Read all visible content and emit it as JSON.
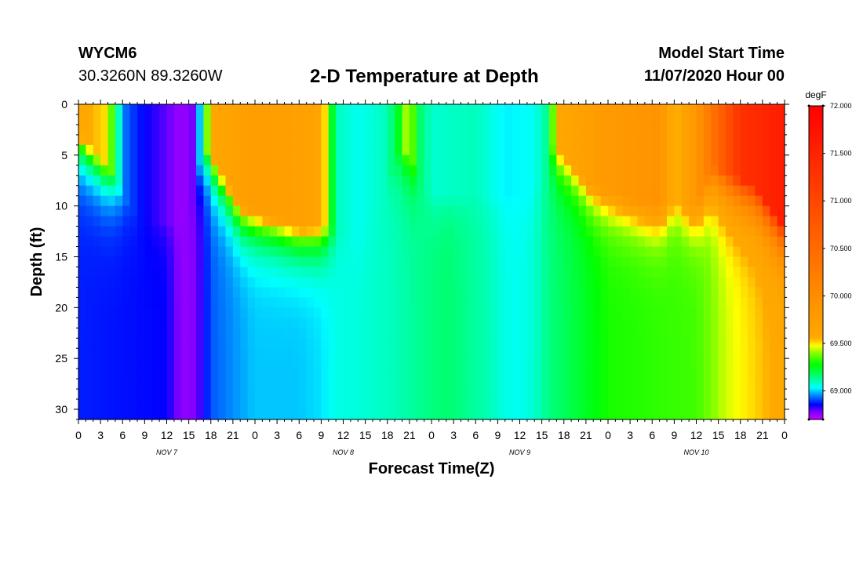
{
  "header": {
    "station": "WYCM6",
    "coordinates": "30.3260N 89.3260W",
    "title": "2-D Temperature at Depth",
    "model_start_label": "Model Start Time",
    "model_start_value": "11/07/2020 Hour 00"
  },
  "chart_data": {
    "type": "heatmap",
    "title": "2-D Temperature at Depth",
    "xlabel": "Forecast Time(Z)",
    "ylabel": "Depth (ft)",
    "x_hours_range": [
      0,
      96
    ],
    "x_tick_step_hours": 3,
    "x_tick_labels": [
      "0",
      "3",
      "6",
      "9",
      "12",
      "15",
      "18",
      "21",
      "0",
      "3",
      "6",
      "9",
      "12",
      "15",
      "18",
      "21",
      "0",
      "3",
      "6",
      "9",
      "12",
      "15",
      "18",
      "21",
      "0",
      "3",
      "6",
      "9",
      "12",
      "15",
      "18",
      "21",
      "0"
    ],
    "day_labels": [
      {
        "label": "NOV 7",
        "hour": 12
      },
      {
        "label": "NOV 8",
        "hour": 36
      },
      {
        "label": "NOV 9",
        "hour": 60
      },
      {
        "label": "NOV 10",
        "hour": 84
      }
    ],
    "ylim": [
      0,
      31
    ],
    "y_ticks": [
      0,
      5,
      10,
      15,
      20,
      25,
      30
    ],
    "colorbar": {
      "unit": "degF",
      "min": 68.7,
      "max": 72.0,
      "tick_values": [
        69.0,
        69.5,
        70.0,
        70.5,
        71.0,
        71.5,
        72.0
      ],
      "tick_labels": [
        "69.000",
        "69.500",
        "70.000",
        "70.500",
        "71.000",
        "71.500",
        "72.000"
      ],
      "stops": [
        {
          "value": 68.7,
          "color": "#cc00ff"
        },
        {
          "value": 68.78,
          "color": "#8000ff"
        },
        {
          "value": 68.86,
          "color": "#0000ff"
        },
        {
          "value": 68.95,
          "color": "#0080ff"
        },
        {
          "value": 69.04,
          "color": "#00ffff"
        },
        {
          "value": 69.15,
          "color": "#00ff80"
        },
        {
          "value": 69.28,
          "color": "#00ff00"
        },
        {
          "value": 69.4,
          "color": "#80ff00"
        },
        {
          "value": 69.48,
          "color": "#ffff00"
        },
        {
          "value": 69.56,
          "color": "#ffaa00"
        },
        {
          "value": 70.2,
          "color": "#ff8000"
        },
        {
          "value": 72.0,
          "color": "#ff0000"
        }
      ]
    },
    "surface_temps": [
      [
        0,
        69.6
      ],
      [
        4,
        69.5
      ],
      [
        6,
        68.95
      ],
      [
        8,
        68.88
      ],
      [
        12,
        68.8
      ],
      [
        14,
        68.75
      ],
      [
        16,
        68.8
      ],
      [
        18,
        69.6
      ],
      [
        24,
        69.75
      ],
      [
        30,
        69.7
      ],
      [
        33,
        69.65
      ],
      [
        35,
        69.1
      ],
      [
        38,
        69.05
      ],
      [
        42,
        69.1
      ],
      [
        43.5,
        69.25
      ],
      [
        45,
        69.5
      ],
      [
        46,
        69.2
      ],
      [
        48,
        69.08
      ],
      [
        54,
        69.1
      ],
      [
        58,
        69.03
      ],
      [
        62,
        69.05
      ],
      [
        64,
        69.15
      ],
      [
        65,
        69.6
      ],
      [
        72,
        69.8
      ],
      [
        79,
        69.9
      ],
      [
        81,
        69.5
      ],
      [
        84,
        69.85
      ],
      [
        90,
        71.3
      ],
      [
        96,
        71.6
      ]
    ],
    "bottom_temps": [
      [
        0,
        68.88
      ],
      [
        12,
        68.86
      ],
      [
        14,
        68.76
      ],
      [
        16,
        68.78
      ],
      [
        18,
        68.92
      ],
      [
        24,
        69.0
      ],
      [
        30,
        69.0
      ],
      [
        33,
        69.02
      ],
      [
        35,
        69.06
      ],
      [
        38,
        69.07
      ],
      [
        43,
        69.1
      ],
      [
        50,
        69.17
      ],
      [
        56,
        69.1
      ],
      [
        58,
        69.06
      ],
      [
        60,
        69.05
      ],
      [
        62,
        69.08
      ],
      [
        64,
        69.15
      ],
      [
        72,
        69.3
      ],
      [
        84,
        69.34
      ],
      [
        88,
        69.45
      ],
      [
        92,
        69.52
      ],
      [
        96,
        69.6
      ]
    ],
    "mixed_layer_depth_ft": [
      [
        0,
        3
      ],
      [
        5,
        7
      ],
      [
        6,
        9
      ],
      [
        8,
        11
      ],
      [
        15,
        12
      ],
      [
        17,
        4
      ],
      [
        18,
        5
      ],
      [
        22,
        10
      ],
      [
        30,
        12
      ],
      [
        34,
        12
      ],
      [
        38,
        14
      ],
      [
        44,
        4
      ],
      [
        48,
        9
      ],
      [
        62,
        9
      ],
      [
        64,
        4
      ],
      [
        66,
        5
      ],
      [
        70,
        8
      ],
      [
        78,
        10
      ],
      [
        84,
        10
      ],
      [
        86,
        6
      ],
      [
        92,
        8
      ],
      [
        96,
        12
      ]
    ]
  }
}
